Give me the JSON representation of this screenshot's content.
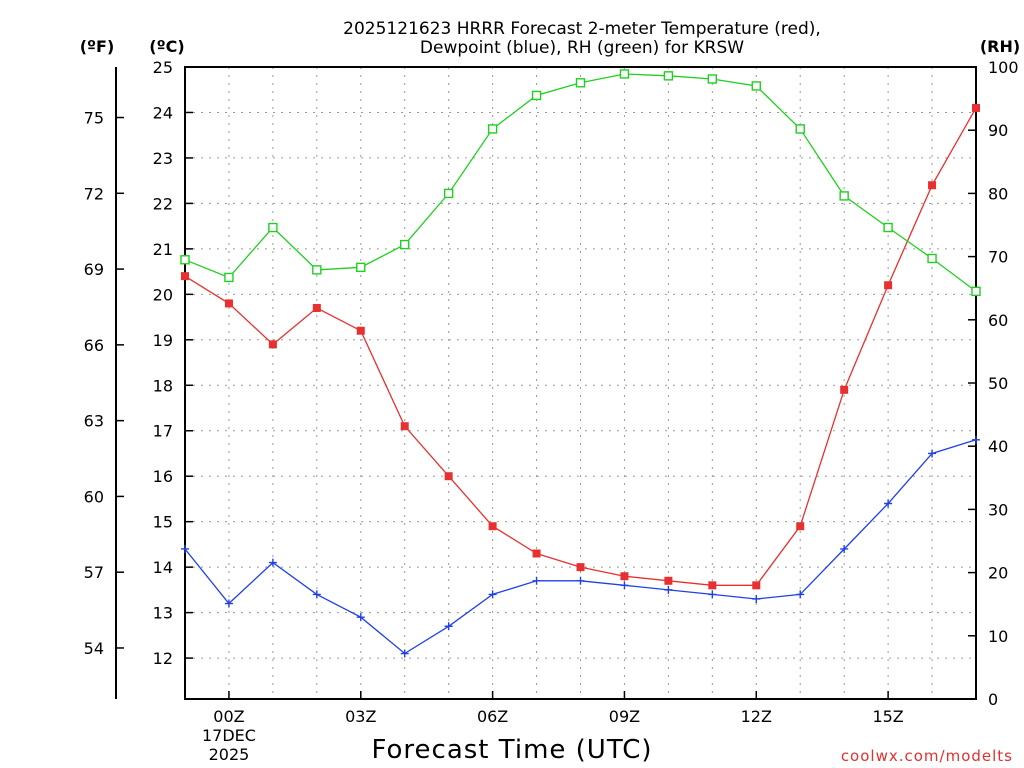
{
  "chart_data": {
    "type": "line",
    "title_line1": "2025121623 HRRR Forecast 2-meter Temperature (red),",
    "title_line2": "Dewpoint (blue), RH (green) for KRSW",
    "xlabel": "Forecast Time (UTC)",
    "credit": "coolwx.com/modelts",
    "x_hours": [
      -1,
      0,
      1,
      2,
      3,
      4,
      5,
      6,
      7,
      8,
      9,
      10,
      11,
      12,
      13,
      14,
      15,
      16,
      17
    ],
    "x_ticks": [
      {
        "hour": 0,
        "label": "00Z",
        "sub1": "17DEC",
        "sub2": "2025"
      },
      {
        "hour": 3,
        "label": "03Z"
      },
      {
        "hour": 6,
        "label": "06Z"
      },
      {
        "hour": 9,
        "label": "09Z"
      },
      {
        "hour": 12,
        "label": "12Z"
      },
      {
        "hour": 15,
        "label": "15Z"
      }
    ],
    "xlim": [
      -1,
      17
    ],
    "left_axis_c": {
      "unit": "(ºC)",
      "ylim": [
        11.1,
        25
      ],
      "ticks": [
        12,
        13,
        14,
        15,
        16,
        17,
        18,
        19,
        20,
        21,
        22,
        23,
        24,
        25
      ]
    },
    "left_axis_f": {
      "unit": "(ºF)",
      "ticks": [
        54,
        57,
        60,
        63,
        66,
        69,
        72,
        75
      ]
    },
    "right_axis_rh": {
      "unit": "(RH)",
      "ylim": [
        0,
        100
      ],
      "ticks": [
        0,
        10,
        20,
        30,
        40,
        50,
        60,
        70,
        80,
        90,
        100
      ]
    },
    "series": [
      {
        "name": "Temperature",
        "color": "#e83030",
        "marker": "filled-square",
        "axis": "C",
        "values": [
          20.4,
          19.8,
          18.9,
          19.7,
          19.2,
          17.1,
          16.0,
          14.9,
          14.3,
          14.0,
          13.8,
          13.7,
          13.6,
          13.6,
          14.9,
          17.9,
          20.2,
          22.4,
          24.1
        ]
      },
      {
        "name": "Dewpoint",
        "color": "#2040e8",
        "marker": "plus",
        "axis": "C",
        "values": [
          14.4,
          13.2,
          14.1,
          13.4,
          12.9,
          12.1,
          12.7,
          13.4,
          13.7,
          13.7,
          13.6,
          13.5,
          13.4,
          13.3,
          13.4,
          14.4,
          15.4,
          16.5,
          16.8
        ]
      },
      {
        "name": "RH",
        "color": "#20d020",
        "marker": "open-square",
        "axis": "RH",
        "values": [
          69.5,
          66.7,
          74.6,
          67.9,
          68.3,
          71.9,
          80.0,
          90.2,
          95.5,
          97.5,
          98.9,
          98.6,
          98.1,
          97.0,
          90.2,
          79.6,
          74.6,
          69.7,
          64.5
        ]
      }
    ]
  }
}
